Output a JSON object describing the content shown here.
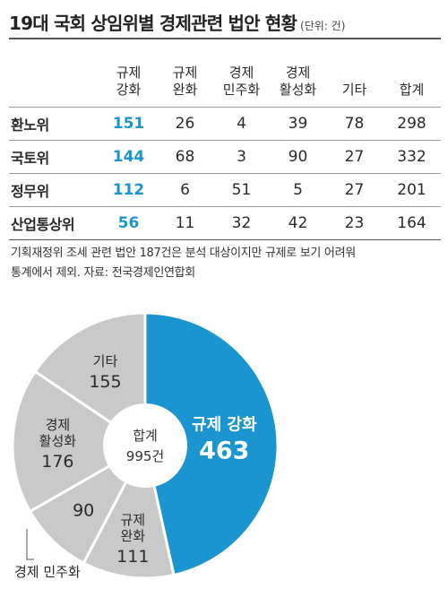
{
  "title": "19대 국회 상임위별 경제관련 법안 현황",
  "unit": "(단위: 건)",
  "table": {
    "corner": "",
    "columns": [
      "규제\n강화",
      "규제\n완화",
      "경제\n민주화",
      "경제\n활성화",
      "기타",
      "합계"
    ],
    "rows": [
      {
        "committee": "환노위",
        "values": [
          "151",
          "26",
          "4",
          "39",
          "78",
          "298"
        ]
      },
      {
        "committee": "국토위",
        "values": [
          "144",
          "68",
          "3",
          "90",
          "27",
          "332"
        ]
      },
      {
        "committee": "정무위",
        "values": [
          "112",
          "6",
          "51",
          "5",
          "27",
          "201"
        ]
      },
      {
        "committee": "산업통상위",
        "values": [
          "56",
          "11",
          "32",
          "42",
          "23",
          "164"
        ]
      }
    ]
  },
  "note": {
    "line1": "기획재정위 조세 관련 법안 187건은 분석 대상이지만 규제로 보기 어려워",
    "line2": "통계에서 제외.  자료: 전국경제인연합회"
  },
  "chart_data": {
    "type": "pie",
    "center_label": "합계",
    "center_value": "995건",
    "slices": [
      {
        "label": "규제 강화",
        "value": 463,
        "color": "#1b95cf"
      },
      {
        "label": "규제\n완화",
        "value": 111,
        "color": "#c9c9c9"
      },
      {
        "label": "경제 민주화",
        "value": 90,
        "color": "#c9c9c9"
      },
      {
        "label": "경제\n활성화",
        "value": 176,
        "color": "#c9c9c9"
      },
      {
        "label": "기타",
        "value": 155,
        "color": "#c9c9c9"
      }
    ]
  },
  "colors": {
    "accent": "#1b95cf",
    "gray": "#c9c9c9",
    "separator": "#ffffff"
  }
}
